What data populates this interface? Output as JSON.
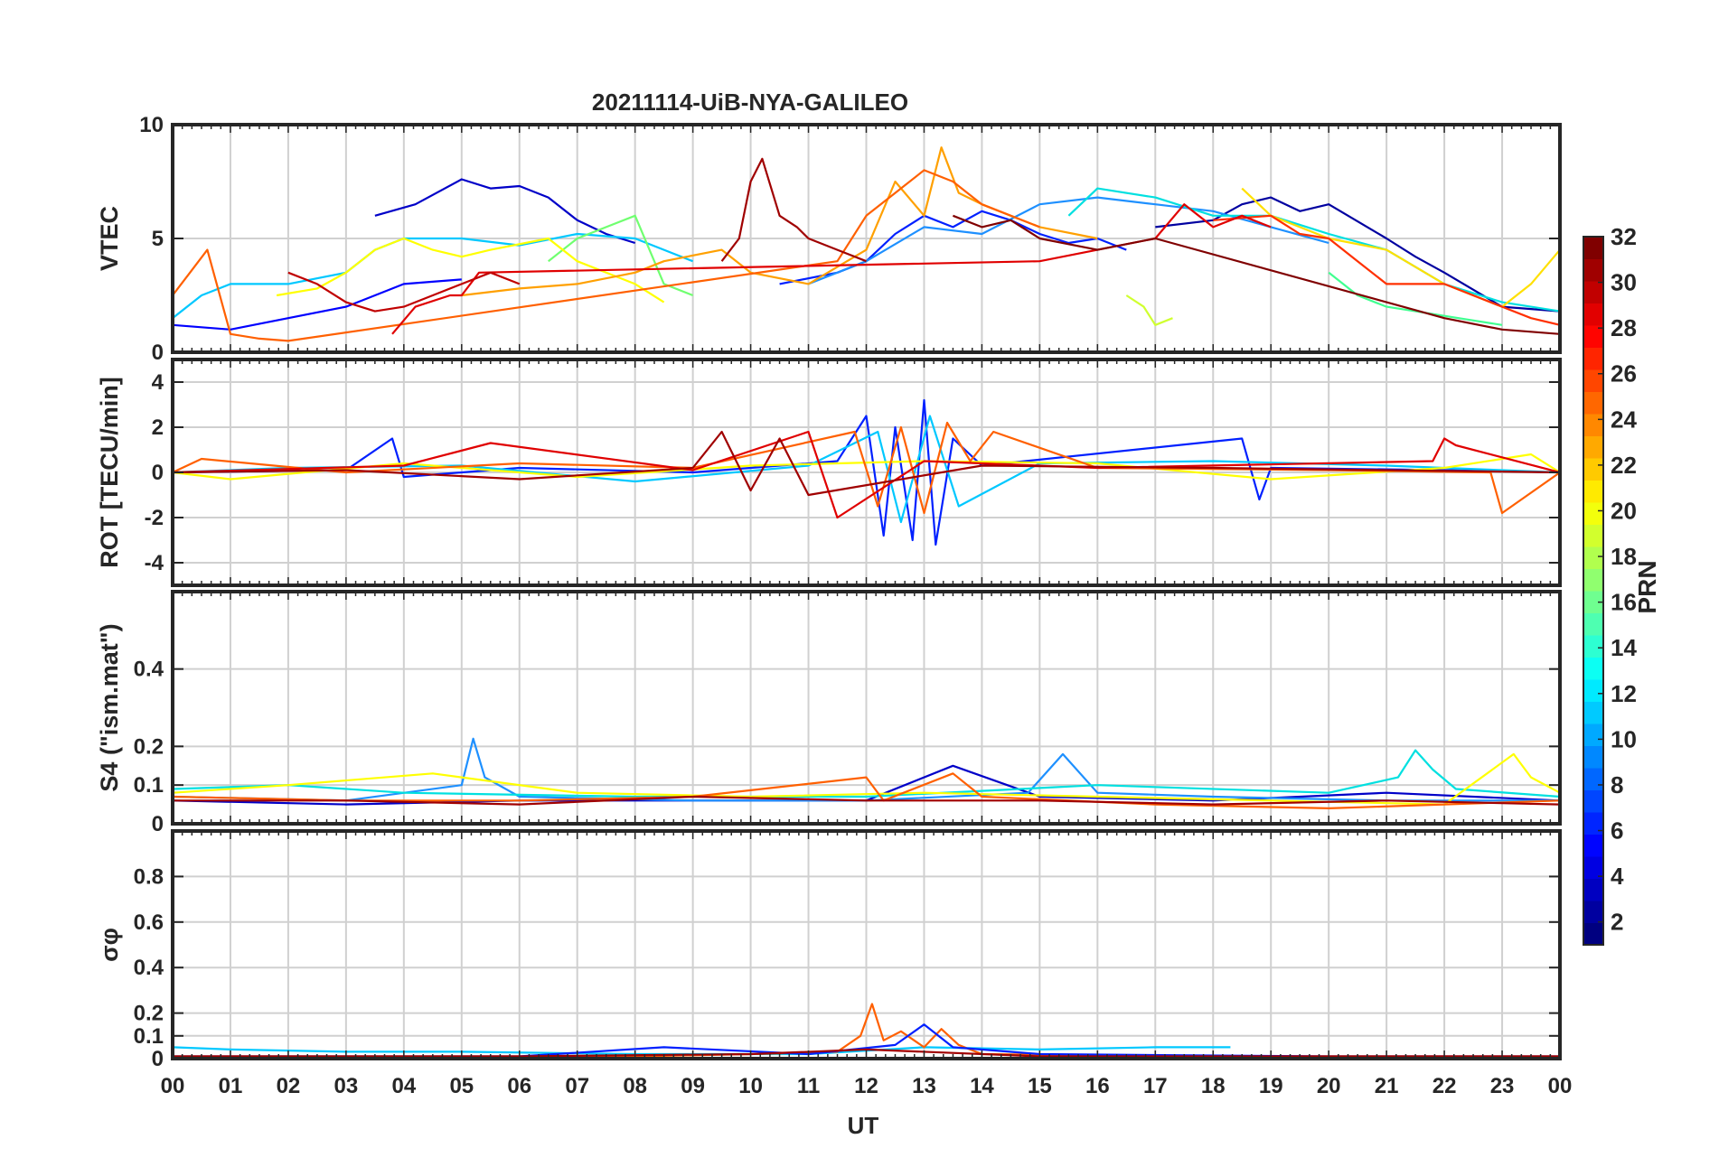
{
  "figure": {
    "title": "20211114-UiB-NYA-GALILEO",
    "xlabel": "UT",
    "x_tick_labels": [
      "00",
      "01",
      "02",
      "03",
      "04",
      "05",
      "06",
      "07",
      "08",
      "09",
      "10",
      "11",
      "12",
      "13",
      "14",
      "15",
      "16",
      "17",
      "18",
      "19",
      "20",
      "21",
      "22",
      "23",
      "00"
    ],
    "colorbar": {
      "label": "PRN",
      "range": [
        1,
        32
      ],
      "tick_labels": [
        "2",
        "4",
        "6",
        "8",
        "10",
        "12",
        "14",
        "16",
        "18",
        "20",
        "22",
        "24",
        "26",
        "28",
        "30",
        "32"
      ],
      "colormap": "jet"
    }
  },
  "chart_data": [
    {
      "type": "line",
      "panel": "vtec",
      "ylabel": "VTEC",
      "ylim": [
        0,
        10
      ],
      "yticks": [
        "0",
        "5",
        "10"
      ],
      "xlim": [
        0,
        24
      ],
      "grid": true,
      "series": [
        {
          "prn": 3,
          "color": "#0000c8",
          "x": [
            3.5,
            4.2,
            5.0,
            5.5,
            6.0,
            6.5,
            7.0,
            7.5,
            8.0
          ],
          "y": [
            6.0,
            6.5,
            7.6,
            7.2,
            7.3,
            6.8,
            5.8,
            5.2,
            4.8
          ]
        },
        {
          "prn": 5,
          "color": "#0000ff",
          "x": [
            0.0,
            1.0,
            2.0,
            3.0,
            3.5,
            4.0,
            5.0
          ],
          "y": [
            1.2,
            1.0,
            1.5,
            2.0,
            2.5,
            3.0,
            3.2
          ]
        },
        {
          "prn": 4,
          "color": "#0020ff",
          "x": [
            10.5,
            11.5,
            12.0,
            12.5,
            13.0,
            13.5,
            14.0,
            14.5,
            15.0,
            15.5,
            16.0,
            16.5
          ],
          "y": [
            3.0,
            3.5,
            4.0,
            5.2,
            6.0,
            5.5,
            6.2,
            5.8,
            5.2,
            4.8,
            5.0,
            4.5
          ]
        },
        {
          "prn": 2,
          "color": "#0000a0",
          "x": [
            17.0,
            18.0,
            18.5,
            19.0,
            19.5,
            20.0,
            21.0,
            21.5,
            22.0,
            23.0,
            24.0
          ],
          "y": [
            5.5,
            5.8,
            6.5,
            6.8,
            6.2,
            6.5,
            5.0,
            4.2,
            3.5,
            2.0,
            1.8
          ]
        },
        {
          "prn": 9,
          "color": "#1e90ff",
          "x": [
            11.0,
            12.0,
            13.0,
            14.0,
            15.0,
            16.0,
            17.0,
            18.0,
            19.0,
            20.0
          ],
          "y": [
            3.0,
            4.0,
            5.5,
            5.2,
            6.5,
            6.8,
            6.5,
            6.2,
            5.5,
            4.8
          ]
        },
        {
          "prn": 12,
          "color": "#00c8ff",
          "x": [
            0.0,
            0.5,
            1.0,
            2.0,
            3.0,
            3.5,
            4.0,
            5.0,
            6.0,
            7.0,
            8.0,
            9.0
          ],
          "y": [
            1.5,
            2.5,
            3.0,
            3.0,
            3.5,
            4.5,
            5.0,
            5.0,
            4.7,
            5.2,
            5.0,
            4.0
          ]
        },
        {
          "prn": 13,
          "color": "#00e0e0",
          "x": [
            15.5,
            16.0,
            17.0,
            18.0,
            19.0,
            20.0,
            21.0,
            22.0,
            23.0,
            24.0
          ],
          "y": [
            6.0,
            7.2,
            6.8,
            6.0,
            6.0,
            5.2,
            4.5,
            3.0,
            2.2,
            1.8
          ]
        },
        {
          "prn": 15,
          "color": "#40ff90",
          "x": [
            20.0,
            20.5,
            21.0,
            21.5,
            22.0,
            23.0
          ],
          "y": [
            3.5,
            2.5,
            2.0,
            1.8,
            1.6,
            1.2
          ]
        },
        {
          "prn": 16,
          "color": "#70ff70",
          "x": [
            6.5,
            7.0,
            7.5,
            8.0,
            8.5,
            9.0
          ],
          "y": [
            4.0,
            5.0,
            5.5,
            6.0,
            3.0,
            2.5
          ]
        },
        {
          "prn": 19,
          "color": "#d0ff30",
          "x": [
            16.5,
            16.8,
            17.0,
            17.3
          ],
          "y": [
            2.5,
            2.0,
            1.2,
            1.5
          ]
        },
        {
          "prn": 20,
          "color": "#ffff00",
          "x": [
            1.8,
            2.5,
            3.0,
            3.5,
            4.0,
            4.5,
            5.0,
            5.5,
            6.5,
            7.0,
            8.0,
            8.5
          ],
          "y": [
            2.5,
            2.8,
            3.5,
            4.5,
            5.0,
            4.5,
            4.2,
            4.5,
            5.0,
            4.0,
            3.0,
            2.2
          ]
        },
        {
          "prn": 21,
          "color": "#ffe000",
          "x": [
            18.5,
            19.0,
            19.5,
            20.0,
            21.0,
            22.0,
            23.0,
            23.5,
            24.0
          ],
          "y": [
            7.2,
            6.0,
            5.5,
            5.0,
            4.5,
            3.0,
            2.0,
            3.0,
            4.5
          ]
        },
        {
          "prn": 23,
          "color": "#ffa000",
          "x": [
            5.0,
            6.0,
            7.0,
            8.0,
            8.5,
            9.5,
            10.0,
            11.0,
            12.0,
            12.5,
            13.0,
            13.3,
            13.6,
            14.0,
            15.0,
            16.0
          ],
          "y": [
            2.5,
            2.8,
            3.0,
            3.5,
            4.0,
            4.5,
            3.5,
            3.0,
            4.5,
            7.5,
            6.0,
            9.0,
            7.0,
            6.5,
            5.5,
            5.0
          ]
        },
        {
          "prn": 25,
          "color": "#ff6000",
          "x": [
            0.0,
            0.3,
            0.6,
            1.0,
            1.5,
            2.0,
            11.5,
            12.0,
            12.5,
            13.0,
            13.5,
            14.0,
            14.5,
            15.0
          ],
          "y": [
            2.5,
            3.5,
            4.5,
            0.8,
            0.6,
            0.5,
            4.0,
            6.0,
            7.0,
            8.0,
            7.5,
            6.5,
            6.0,
            5.5
          ]
        },
        {
          "prn": 26,
          "color": "#ff3000",
          "x": [
            18.0,
            19.0,
            19.5,
            20.0,
            20.5,
            21.0,
            22.0,
            23.0,
            23.5,
            24.0
          ],
          "y": [
            5.8,
            6.0,
            5.2,
            5.0,
            4.0,
            3.0,
            3.0,
            2.0,
            1.5,
            1.2
          ]
        },
        {
          "prn": 28,
          "color": "#e00000",
          "x": [
            3.8,
            4.2,
            4.8,
            5.0,
            5.3,
            15.0,
            16.0,
            17.0,
            17.5,
            18.0,
            18.5,
            19.0
          ],
          "y": [
            0.8,
            2.0,
            2.5,
            2.5,
            3.5,
            4.0,
            4.5,
            5.0,
            6.5,
            5.5,
            6.0,
            5.5
          ]
        },
        {
          "prn": 30,
          "color": "#c00000",
          "x": [
            2.0,
            2.5,
            3.0,
            3.5,
            4.0,
            4.5,
            5.0,
            5.5,
            6.0
          ],
          "y": [
            3.5,
            3.0,
            2.2,
            1.8,
            2.0,
            2.5,
            3.0,
            3.5,
            3.0
          ]
        },
        {
          "prn": 31,
          "color": "#a00000",
          "x": [
            9.5,
            9.8,
            10.0,
            10.2,
            10.5,
            10.8,
            11.0,
            11.5,
            12.0
          ],
          "y": [
            4.0,
            5.0,
            7.5,
            8.5,
            6.0,
            5.5,
            5.0,
            4.5,
            4.0
          ]
        },
        {
          "prn": 32,
          "color": "#800000",
          "x": [
            13.5,
            14.0,
            14.5,
            15.0,
            16.0,
            17.0,
            22.0,
            23.0,
            24.0
          ],
          "y": [
            6.0,
            5.5,
            5.8,
            5.0,
            4.5,
            5.0,
            1.5,
            1.0,
            0.8
          ]
        }
      ]
    },
    {
      "type": "line",
      "panel": "rot",
      "ylabel": "ROT [TECU/min]",
      "ylim": [
        -5,
        5
      ],
      "yticks": [
        "-4",
        "-2",
        "0",
        "2",
        "4"
      ],
      "xlim": [
        0,
        24
      ],
      "grid": true,
      "series": [
        {
          "prn": 4,
          "color": "#0020ff",
          "x": [
            0,
            3,
            3.8,
            4,
            6,
            9,
            11.5,
            12.0,
            12.3,
            12.5,
            12.8,
            13.0,
            13.2,
            13.5,
            14,
            18.5,
            18.8,
            19,
            22,
            24
          ],
          "y": [
            0,
            0.1,
            1.5,
            -0.2,
            0.2,
            0,
            0.5,
            2.5,
            -2.8,
            2.0,
            -3.0,
            3.2,
            -3.2,
            1.5,
            0.3,
            1.5,
            -1.2,
            0.2,
            0.1,
            0
          ]
        },
        {
          "prn": 12,
          "color": "#00c8ff",
          "x": [
            0,
            2,
            5,
            8,
            11,
            12.2,
            12.6,
            13.1,
            13.6,
            15,
            18,
            21,
            24
          ],
          "y": [
            0,
            0.2,
            0.3,
            -0.4,
            0.3,
            1.8,
            -2.2,
            2.5,
            -1.5,
            0.4,
            0.5,
            0.3,
            0
          ]
        },
        {
          "prn": 20,
          "color": "#ffff00",
          "x": [
            0,
            1,
            4,
            7,
            10,
            13,
            16,
            19,
            22,
            23.5,
            24
          ],
          "y": [
            0,
            -0.3,
            0.4,
            -0.2,
            0.3,
            0.5,
            0.4,
            -0.3,
            0.2,
            0.8,
            0
          ]
        },
        {
          "prn": 25,
          "color": "#ff6000",
          "x": [
            0,
            0.5,
            3,
            6,
            9,
            11.8,
            12.2,
            12.6,
            13.0,
            13.4,
            13.8,
            14.2,
            16,
            20,
            22.8,
            23.0,
            24
          ],
          "y": [
            0,
            0.6,
            0,
            0.4,
            0.2,
            1.8,
            -1.5,
            2.0,
            -1.8,
            2.2,
            0.5,
            1.8,
            0.2,
            0.1,
            0,
            -1.8,
            0
          ]
        },
        {
          "prn": 28,
          "color": "#e00000",
          "x": [
            0,
            4,
            5.5,
            9,
            11,
            11.5,
            13,
            16,
            21.8,
            22.0,
            22.2,
            24
          ],
          "y": [
            0,
            0.3,
            1.3,
            0.1,
            1.8,
            -2.0,
            0.5,
            0.2,
            0.5,
            1.5,
            1.2,
            0
          ]
        },
        {
          "prn": 31,
          "color": "#a00000",
          "x": [
            0,
            3,
            6,
            9.0,
            9.5,
            10.0,
            10.5,
            11.0,
            14,
            18,
            24
          ],
          "y": [
            0,
            0.1,
            -0.3,
            0.2,
            1.8,
            -0.8,
            1.5,
            -1.0,
            0.3,
            0.2,
            0
          ]
        }
      ]
    },
    {
      "type": "line",
      "panel": "s4",
      "ylabel": "S4 (\"ism.mat\")",
      "ylim": [
        0,
        0.6
      ],
      "yticks": [
        "0",
        "0.1",
        "0.2",
        "0.4"
      ],
      "xlim": [
        0,
        24
      ],
      "grid": true,
      "series": [
        {
          "prn": 3,
          "color": "#0000c8",
          "x": [
            0,
            3,
            6,
            9,
            12,
            13.5,
            15,
            18,
            21,
            24
          ],
          "y": [
            0.06,
            0.05,
            0.06,
            0.06,
            0.06,
            0.15,
            0.07,
            0.06,
            0.08,
            0.06
          ]
        },
        {
          "prn": 9,
          "color": "#1e90ff",
          "x": [
            0,
            3,
            5.0,
            5.2,
            5.4,
            6,
            9,
            12,
            14.8,
            15.4,
            16,
            18,
            21,
            24
          ],
          "y": [
            0.07,
            0.06,
            0.1,
            0.22,
            0.12,
            0.07,
            0.06,
            0.06,
            0.08,
            0.18,
            0.08,
            0.07,
            0.06,
            0.06
          ]
        },
        {
          "prn": 13,
          "color": "#00e0e0",
          "x": [
            0,
            2,
            4,
            8,
            12,
            16,
            20,
            21.2,
            21.5,
            21.8,
            22.2,
            24
          ],
          "y": [
            0.09,
            0.1,
            0.08,
            0.07,
            0.07,
            0.1,
            0.08,
            0.12,
            0.19,
            0.14,
            0.09,
            0.07
          ]
        },
        {
          "prn": 20,
          "color": "#ffff00",
          "x": [
            0,
            2,
            4.5,
            7,
            10,
            13,
            16,
            19,
            22,
            23.2,
            23.5,
            24
          ],
          "y": [
            0.08,
            0.1,
            0.13,
            0.08,
            0.07,
            0.08,
            0.07,
            0.06,
            0.05,
            0.18,
            0.12,
            0.08
          ]
        },
        {
          "prn": 25,
          "color": "#ff6000",
          "x": [
            0,
            3,
            6,
            9,
            12.0,
            12.3,
            13.5,
            14,
            17,
            20,
            24
          ],
          "y": [
            0.07,
            0.06,
            0.06,
            0.07,
            0.12,
            0.06,
            0.13,
            0.07,
            0.05,
            0.04,
            0.06
          ]
        },
        {
          "prn": 31,
          "color": "#a00000",
          "x": [
            0,
            3,
            6,
            9,
            12,
            15,
            18,
            21,
            24
          ],
          "y": [
            0.06,
            0.06,
            0.05,
            0.07,
            0.06,
            0.06,
            0.05,
            0.06,
            0.05
          ]
        }
      ]
    },
    {
      "type": "line",
      "panel": "sigma_phi",
      "ylabel": "σφ",
      "ylim": [
        0,
        1
      ],
      "yticks": [
        "0",
        "0.1",
        "0.2",
        "0.4",
        "0.6",
        "0.8"
      ],
      "xlim": [
        0,
        24
      ],
      "grid": true,
      "series": [
        {
          "prn": 12,
          "color": "#00c8ff",
          "x": [
            0,
            1,
            3,
            5,
            8,
            11,
            13,
            15,
            17,
            18.3
          ],
          "y": [
            0.05,
            0.04,
            0.03,
            0.03,
            0.02,
            0.02,
            0.05,
            0.04,
            0.05,
            0.05
          ]
        },
        {
          "prn": 25,
          "color": "#ff6000",
          "x": [
            0,
            4,
            8,
            10,
            11.5,
            11.9,
            12.1,
            12.3,
            12.6,
            13.0,
            13.3,
            13.6,
            14,
            18,
            24
          ],
          "y": [
            0.01,
            0.01,
            0.01,
            0.02,
            0.03,
            0.1,
            0.24,
            0.08,
            0.12,
            0.05,
            0.13,
            0.06,
            0.02,
            0.01,
            0.01
          ]
        },
        {
          "prn": 4,
          "color": "#0020ff",
          "x": [
            0,
            6,
            8.5,
            11,
            12.5,
            13.0,
            13.5,
            15,
            20,
            24
          ],
          "y": [
            0.01,
            0.01,
            0.05,
            0.02,
            0.06,
            0.15,
            0.05,
            0.02,
            0.01,
            0.01
          ]
        },
        {
          "prn": 31,
          "color": "#a00000",
          "x": [
            0,
            6,
            10,
            12,
            15,
            20,
            24
          ],
          "y": [
            0.01,
            0.01,
            0.02,
            0.04,
            0.01,
            0.01,
            0.01
          ]
        }
      ]
    }
  ]
}
